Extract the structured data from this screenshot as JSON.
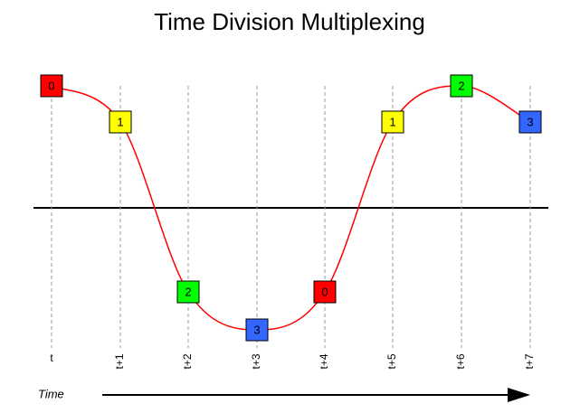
{
  "title": "Time Division Multiplexing",
  "time_label": "Time",
  "slots": [
    {
      "time": "t",
      "channel": "0",
      "color": "#ff0000"
    },
    {
      "time": "t+1",
      "channel": "1",
      "color": "#ffff00"
    },
    {
      "time": "t+2",
      "channel": "2",
      "color": "#00ff00"
    },
    {
      "time": "t+3",
      "channel": "3",
      "color": "#3366ff"
    },
    {
      "time": "t+4",
      "channel": "0",
      "color": "#ff0000"
    },
    {
      "time": "t+5",
      "channel": "1",
      "color": "#ffff00"
    },
    {
      "time": "t+6",
      "channel": "2",
      "color": "#00ff00"
    },
    {
      "time": "t+7",
      "channel": "3",
      "color": "#3366ff"
    }
  ]
}
